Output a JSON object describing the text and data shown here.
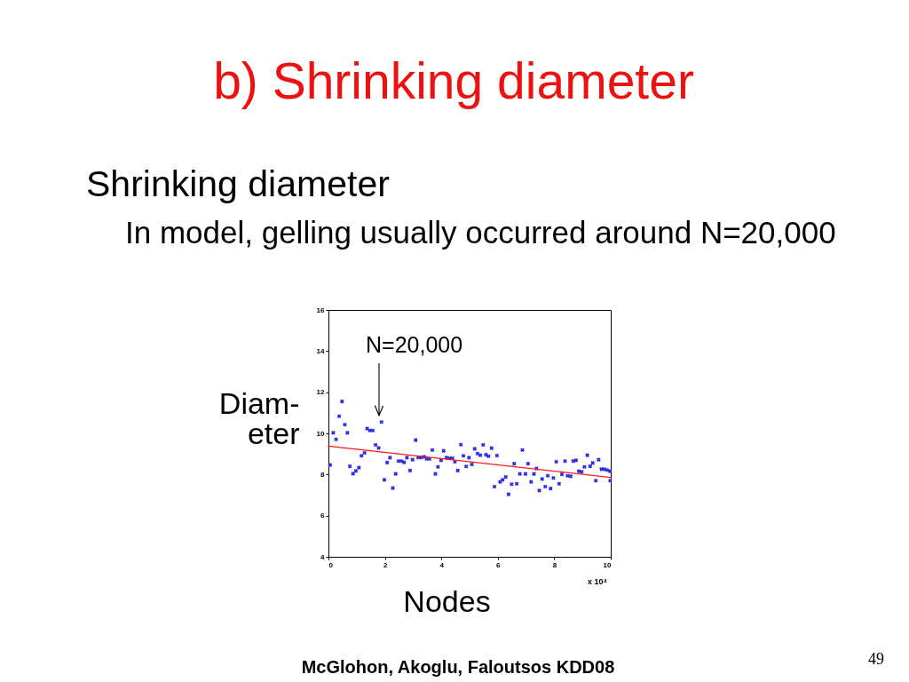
{
  "chart_data": {
    "type": "scatter",
    "title": "b) Shrinking diameter",
    "xlabel": "Nodes",
    "ylabel": "Diam-\neter",
    "annotations": [
      "Shrinking diameter",
      "In model, gelling usually occurred around N=20,000",
      "N=20,000",
      "x 10⁴",
      "McGlohon, Akoglu, Faloutsos KDD08",
      "49"
    ],
    "xlim": [
      0,
      10
    ],
    "xticks": [
      0,
      2,
      4,
      6,
      8,
      10
    ],
    "ylim": [
      4,
      16
    ],
    "yticks": [
      4,
      6,
      8,
      10,
      12,
      14,
      16
    ],
    "grid": false,
    "series": [
      {
        "color": "#2a2ae6",
        "marker": "cross",
        "x": [
          0.06,
          0.17,
          0.27,
          0.38,
          0.48,
          0.58,
          0.67,
          0.76,
          0.87,
          0.97,
          1.08,
          1.17,
          1.28,
          1.37,
          1.47,
          1.57,
          1.67,
          1.78,
          1.88,
          1.98,
          2.08,
          2.18,
          2.28,
          2.38,
          2.48,
          2.58,
          2.68,
          2.78,
          2.89,
          2.98,
          3.09,
          3.18,
          3.28,
          3.39,
          3.48,
          3.58,
          3.68,
          3.79,
          3.88,
          3.99,
          4.08,
          4.18,
          4.29,
          4.39,
          4.48,
          4.58,
          4.69,
          4.78,
          4.88,
          4.98,
          5.08,
          5.18,
          5.28,
          5.38,
          5.48,
          5.58,
          5.67,
          5.78,
          5.88,
          5.97,
          6.08,
          6.17,
          6.28,
          6.38,
          6.49,
          6.58,
          6.67,
          6.78,
          6.87,
          6.98,
          7.07,
          7.18,
          7.28,
          7.37,
          7.47,
          7.57,
          7.68,
          7.77,
          7.87,
          7.97,
          8.07,
          8.17,
          8.27,
          8.38,
          8.47,
          8.58,
          8.67,
          8.77,
          8.87,
          8.97,
          9.07,
          9.17,
          9.27,
          9.36,
          9.47,
          9.57,
          9.67,
          9.77,
          9.87,
          9.97,
          9.98
        ],
        "values": [
          8.46,
          10.03,
          9.71,
          10.83,
          11.55,
          10.42,
          10.03,
          8.4,
          8.04,
          8.17,
          8.33,
          8.91,
          9.05,
          10.23,
          10.14,
          10.14,
          9.44,
          9.29,
          10.55,
          7.74,
          8.58,
          8.82,
          7.34,
          8.03,
          8.65,
          8.65,
          8.59,
          8.82,
          8.19,
          8.72,
          9.67,
          8.83,
          8.83,
          8.86,
          8.76,
          8.76,
          9.19,
          8.03,
          8.37,
          8.69,
          9.15,
          8.82,
          8.79,
          8.79,
          8.62,
          8.19,
          9.45,
          8.91,
          8.39,
          8.82,
          8.49,
          9.25,
          9.02,
          8.94,
          9.44,
          8.96,
          8.89,
          9.28,
          7.41,
          8.92,
          7.64,
          7.74,
          7.88,
          7.04,
          7.53,
          8.53,
          7.55,
          8.03,
          9.19,
          8.03,
          8.53,
          7.64,
          8.03,
          8.29,
          7.22,
          7.78,
          7.41,
          7.94,
          7.32,
          7.83,
          8.62,
          7.55,
          8.01,
          8.65,
          7.94,
          7.91,
          8.65,
          8.69,
          8.16,
          8.13,
          8.37,
          8.94,
          8.4,
          8.56,
          7.7,
          8.72,
          8.26,
          8.26,
          8.22,
          8.16,
          7.7
        ]
      },
      {
        "type": "line",
        "color": "#ff1a1a",
        "line_style": "solid",
        "x": [
          0,
          10
        ],
        "values": [
          9.38,
          7.86
        ]
      }
    ]
  }
}
